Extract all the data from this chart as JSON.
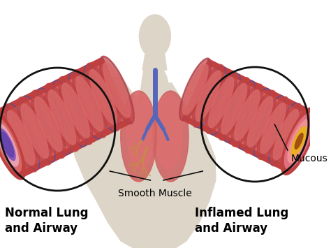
{
  "bg_color": "#ffffff",
  "label_normal": "Normal Lung\nand Airway",
  "label_inflamed": "Inflamed Lung\nand Airway",
  "label_smooth_muscle": "Smooth Muscle",
  "label_mucous": "Mucous",
  "label_fontsize": 12,
  "annotation_fontsize": 10,
  "body_color": "#ddd5c8",
  "body_shadow": "#c8bfb2",
  "lung_left_color": "#d96060",
  "lung_right_color": "#e87070",
  "lung_highlight": "#f09090",
  "trachea_color": "#5566bb",
  "bronchi_color": "#c09040",
  "airway_outer": "#c04040",
  "airway_mid": "#d86868",
  "airway_inner": "#e89090",
  "airway_purple": "#7755aa",
  "airway_vein": "#3355aa",
  "inflamed_pink": "#e87878",
  "inflamed_thick": "#d05858",
  "inflamed_yellow": "#e8b020",
  "inflamed_lumen": "#a05010",
  "normal_lumen": "#8855bb",
  "circle_color": "#111111",
  "line_color": "#111111",
  "text_color": "#000000"
}
